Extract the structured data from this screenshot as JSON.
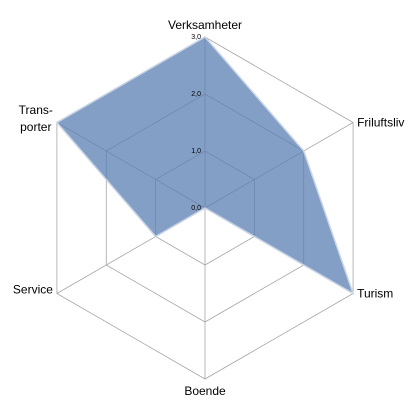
{
  "chart_data": {
    "type": "radar",
    "categories": [
      "Verksamheter",
      "Friluftsliv",
      "Turism",
      "Boende",
      "Service",
      "Trans-\nporter"
    ],
    "series": [
      {
        "name": null,
        "color": "#5b7fb3",
        "values": [
          3,
          2,
          3,
          0,
          1,
          3
        ]
      }
    ],
    "ylim": [
      0,
      3
    ],
    "yticks": [
      {
        "value": 0,
        "label": "0,0"
      },
      {
        "value": 1,
        "label": "1,0"
      },
      {
        "value": 2,
        "label": "2,0"
      },
      {
        "value": 3,
        "label": "3,0"
      }
    ],
    "grid": true
  }
}
